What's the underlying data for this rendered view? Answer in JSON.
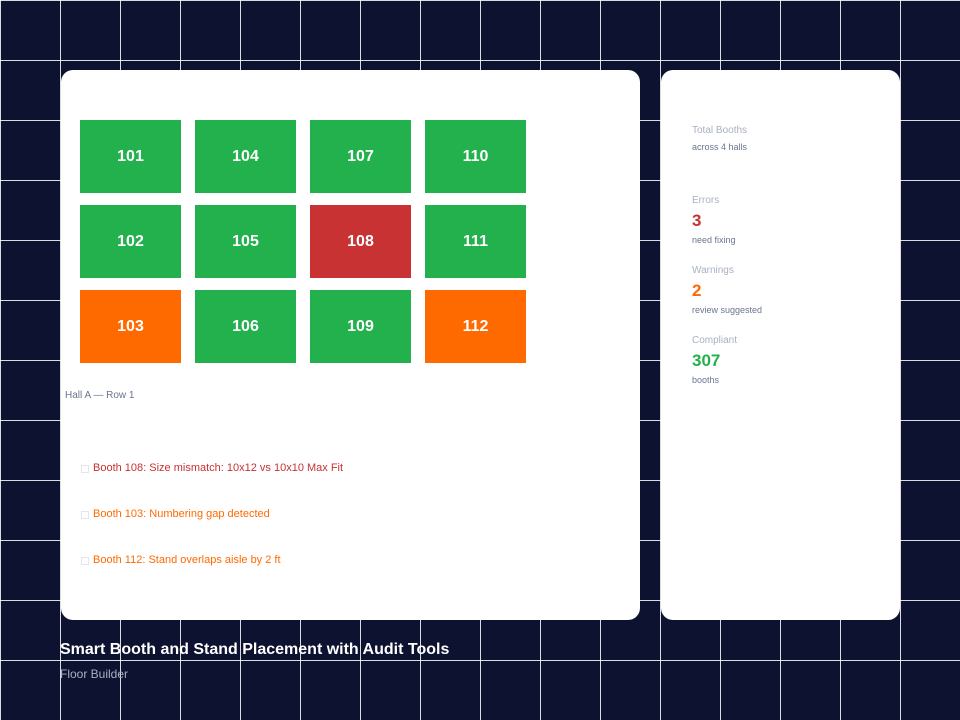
{
  "floor": {
    "booths": [
      {
        "id": "101",
        "status": "ok"
      },
      {
        "id": "104",
        "status": "ok"
      },
      {
        "id": "107",
        "status": "ok"
      },
      {
        "id": "110",
        "status": "ok"
      },
      {
        "id": "102",
        "status": "ok"
      },
      {
        "id": "105",
        "status": "ok"
      },
      {
        "id": "108",
        "status": "error"
      },
      {
        "id": "111",
        "status": "ok"
      },
      {
        "id": "103",
        "status": "warning"
      },
      {
        "id": "106",
        "status": "ok"
      },
      {
        "id": "109",
        "status": "ok"
      },
      {
        "id": "112",
        "status": "warning"
      }
    ],
    "row_label": "Hall A — Row 1"
  },
  "issues": [
    {
      "severity": "error",
      "text": "Booth 108: Size mismatch: 10x12 vs 10x10 Max Fit"
    },
    {
      "severity": "warning",
      "text": "Booth 103: Numbering gap detected"
    },
    {
      "severity": "warning",
      "text": "Booth 112: Stand overlaps aisle by 2 ft"
    }
  ],
  "stats": {
    "total": {
      "label": "Total Booths",
      "value": "",
      "sub": "across 4 halls"
    },
    "errors": {
      "label": "Errors",
      "value": "3",
      "sub": "need fixing"
    },
    "warnings": {
      "label": "Warnings",
      "value": "2",
      "sub": "review suggested"
    },
    "compliant": {
      "label": "Compliant",
      "value": "307",
      "sub": "booths"
    }
  },
  "page": {
    "title": "Smart Booth and Stand Placement with Audit Tools",
    "subtitle": "Floor Builder"
  },
  "colors": {
    "ok": "#22b14c",
    "error": "#c83232",
    "warning": "#ff6a00",
    "background": "#0c1230"
  }
}
